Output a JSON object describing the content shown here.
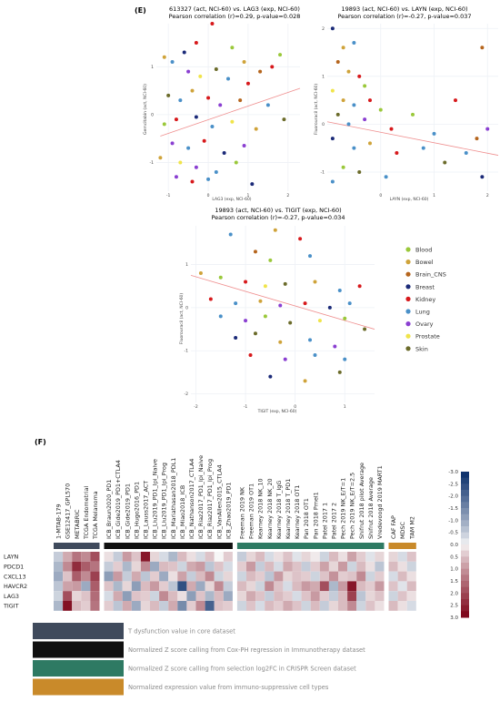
{
  "panel_e_label": "(E)",
  "panel_f_label": "(F)",
  "colors": {
    "Blood": "#9ac83a",
    "Bowel": "#cfa33a",
    "Brain_CNS": "#b5651d",
    "Breast": "#1b2a78",
    "Kidney": "#d7191c",
    "Lung": "#4a90c8",
    "Ovary": "#8a3fd1",
    "Prostate": "#f0e44a",
    "Skin": "#6b6b2a",
    "trend": "#ef8f8f"
  },
  "legend": [
    "Blood",
    "Bowel",
    "Brain_CNS",
    "Breast",
    "Kidney",
    "Lung",
    "Ovary",
    "Prostate",
    "Skin"
  ],
  "chart_data": [
    {
      "type": "scatter",
      "title": "613327 (act, NCI-60) vs. LAG3 (exp, NCI-60)",
      "subtitle": "Pearson correlation (r)=0.29, p-value=0.028",
      "xlabel": "LAG3 (exp, NCI-60)",
      "ylabel": "Gemcitabin (act, NCI-60)",
      "xticks": [
        "-1",
        "0",
        "1",
        "2"
      ],
      "yticks": [
        "1",
        "0",
        "-1"
      ],
      "xlim": [
        -1.3,
        2.3
      ],
      "ylim": [
        -1.6,
        1.9
      ],
      "trend": [
        [
          -1.2,
          -0.45
        ],
        [
          2.3,
          0.55
        ]
      ],
      "points": [
        [
          -1.1,
          1.2,
          "Bowel"
        ],
        [
          -0.9,
          1.1,
          "Lung"
        ],
        [
          -0.6,
          1.3,
          "Breast"
        ],
        [
          -0.3,
          1.5,
          "Kidney"
        ],
        [
          0.1,
          1.9,
          "Kidney"
        ],
        [
          0.6,
          1.4,
          "Blood"
        ],
        [
          0.9,
          1.1,
          "Bowel"
        ],
        [
          1.3,
          0.9,
          "Brain_CNS"
        ],
        [
          1.6,
          1.0,
          "Kidney"
        ],
        [
          1.8,
          1.25,
          "Blood"
        ],
        [
          -0.5,
          0.9,
          "Ovary"
        ],
        [
          -0.2,
          0.8,
          "Prostate"
        ],
        [
          0.2,
          0.95,
          "Skin"
        ],
        [
          0.5,
          0.75,
          "Lung"
        ],
        [
          1.0,
          0.65,
          "Kidney"
        ],
        [
          -1.0,
          0.4,
          "Skin"
        ],
        [
          -0.7,
          0.3,
          "Lung"
        ],
        [
          -0.4,
          0.5,
          "Bowel"
        ],
        [
          0.0,
          0.35,
          "Kidney"
        ],
        [
          0.3,
          0.2,
          "Ovary"
        ],
        [
          0.8,
          0.3,
          "Brain_CNS"
        ],
        [
          1.5,
          0.2,
          "Lung"
        ],
        [
          -1.1,
          -0.2,
          "Blood"
        ],
        [
          -0.8,
          -0.1,
          "Kidney"
        ],
        [
          -0.3,
          -0.05,
          "Breast"
        ],
        [
          0.1,
          -0.25,
          "Lung"
        ],
        [
          0.6,
          -0.15,
          "Prostate"
        ],
        [
          1.2,
          -0.3,
          "Bowel"
        ],
        [
          1.9,
          -0.1,
          "Skin"
        ],
        [
          -0.9,
          -0.6,
          "Ovary"
        ],
        [
          -0.5,
          -0.7,
          "Lung"
        ],
        [
          -0.1,
          -0.55,
          "Kidney"
        ],
        [
          0.4,
          -0.8,
          "Breast"
        ],
        [
          0.9,
          -0.65,
          "Ovary"
        ],
        [
          -1.2,
          -0.9,
          "Bowel"
        ],
        [
          -0.7,
          -1.0,
          "Prostate"
        ],
        [
          -0.3,
          -1.1,
          "Ovary"
        ],
        [
          0.2,
          -1.2,
          "Lung"
        ],
        [
          0.7,
          -1.0,
          "Blood"
        ],
        [
          -0.8,
          -1.3,
          "Ovary"
        ],
        [
          -0.4,
          -1.4,
          "Kidney"
        ],
        [
          0.0,
          -1.35,
          "Lung"
        ],
        [
          1.1,
          -1.45,
          "Breast"
        ]
      ]
    },
    {
      "type": "scatter",
      "title": "19893 (act, NCI-60) vs. LAYN (exp, NCI-60)",
      "subtitle": "Pearson correlation (r)=-0.27, p-value=0.037",
      "xlabel": "LAYN (exp, NCI-60)",
      "ylabel": "Fluorouracil (act, NCI-60)",
      "xticks": [
        "0",
        "1",
        "2"
      ],
      "yticks": [
        "2",
        "1",
        "0",
        "-1"
      ],
      "xlim": [
        -1.0,
        2.2
      ],
      "ylim": [
        -1.4,
        2.1
      ],
      "trend": [
        [
          -1.0,
          0.05
        ],
        [
          2.2,
          -0.65
        ]
      ],
      "points": [
        [
          -0.9,
          2.0,
          "Breast"
        ],
        [
          -0.7,
          1.6,
          "Bowel"
        ],
        [
          -0.5,
          1.7,
          "Lung"
        ],
        [
          -0.8,
          1.3,
          "Brain_CNS"
        ],
        [
          -0.6,
          1.1,
          "Bowel"
        ],
        [
          -0.4,
          1.0,
          "Kidney"
        ],
        [
          -0.3,
          0.8,
          "Blood"
        ],
        [
          -0.9,
          0.7,
          "Prostate"
        ],
        [
          -0.7,
          0.5,
          "Bowel"
        ],
        [
          -0.5,
          0.4,
          "Lung"
        ],
        [
          -0.2,
          0.5,
          "Kidney"
        ],
        [
          0.0,
          0.3,
          "Blood"
        ],
        [
          -0.8,
          0.2,
          "Skin"
        ],
        [
          -0.6,
          0.0,
          "Lung"
        ],
        [
          -0.3,
          0.1,
          "Ovary"
        ],
        [
          0.2,
          -0.1,
          "Kidney"
        ],
        [
          0.6,
          0.2,
          "Blood"
        ],
        [
          1.0,
          -0.2,
          "Lung"
        ],
        [
          1.4,
          0.5,
          "Kidney"
        ],
        [
          1.8,
          -0.3,
          "Brain_CNS"
        ],
        [
          2.0,
          -0.1,
          "Ovary"
        ],
        [
          1.9,
          1.6,
          "Brain_CNS"
        ],
        [
          -0.9,
          -0.3,
          "Breast"
        ],
        [
          -0.5,
          -0.5,
          "Lung"
        ],
        [
          -0.2,
          -0.4,
          "Bowel"
        ],
        [
          0.3,
          -0.6,
          "Kidney"
        ],
        [
          0.8,
          -0.5,
          "Lung"
        ],
        [
          1.2,
          -0.8,
          "Skin"
        ],
        [
          1.6,
          -0.6,
          "Lung"
        ],
        [
          -0.7,
          -0.9,
          "Blood"
        ],
        [
          -0.4,
          -1.0,
          "Skin"
        ],
        [
          0.1,
          -1.1,
          "Lung"
        ],
        [
          1.9,
          -1.1,
          "Breast"
        ],
        [
          -0.9,
          -1.2,
          "Lung"
        ]
      ]
    },
    {
      "type": "scatter",
      "title": "19893 (act, NCI-60) vs. TIGIT (exp, NCI-60)",
      "subtitle": "Pearson correlation (r)=-0.27, p-value=0.034",
      "xlabel": "TIGIT (exp, NCI-60)",
      "ylabel": "Fluorouracil (act, NCI-60)",
      "xticks": [
        "-2",
        "-1",
        "0",
        "1"
      ],
      "yticks": [
        "1",
        "0",
        "-1",
        "-2"
      ],
      "xlim": [
        -2.1,
        1.6
      ],
      "ylim": [
        -2.2,
        1.9
      ],
      "trend": [
        [
          -2.1,
          0.75
        ],
        [
          1.6,
          -0.5
        ]
      ],
      "points": [
        [
          -1.3,
          1.7,
          "Lung"
        ],
        [
          -0.4,
          1.8,
          "Bowel"
        ],
        [
          0.1,
          1.6,
          "Kidney"
        ],
        [
          -0.8,
          1.3,
          "Brain_CNS"
        ],
        [
          -0.5,
          1.1,
          "Blood"
        ],
        [
          0.3,
          1.2,
          "Lung"
        ],
        [
          -1.9,
          0.8,
          "Bowel"
        ],
        [
          -1.5,
          0.7,
          "Blood"
        ],
        [
          -1.0,
          0.6,
          "Kidney"
        ],
        [
          -0.6,
          0.5,
          "Prostate"
        ],
        [
          -0.2,
          0.55,
          "Skin"
        ],
        [
          0.4,
          0.6,
          "Bowel"
        ],
        [
          0.9,
          0.4,
          "Lung"
        ],
        [
          1.3,
          0.5,
          "Kidney"
        ],
        [
          -1.7,
          0.2,
          "Kidney"
        ],
        [
          -1.2,
          0.1,
          "Lung"
        ],
        [
          -0.7,
          0.15,
          "Bowel"
        ],
        [
          -0.3,
          0.05,
          "Ovary"
        ],
        [
          0.2,
          0.1,
          "Kidney"
        ],
        [
          0.7,
          0.0,
          "Breast"
        ],
        [
          1.1,
          0.1,
          "Lung"
        ],
        [
          -1.5,
          -0.2,
          "Lung"
        ],
        [
          -1.0,
          -0.3,
          "Ovary"
        ],
        [
          -0.6,
          -0.2,
          "Blood"
        ],
        [
          -0.1,
          -0.35,
          "Skin"
        ],
        [
          0.5,
          -0.3,
          "Prostate"
        ],
        [
          1.0,
          -0.25,
          "Blood"
        ],
        [
          1.4,
          -0.5,
          "Skin"
        ],
        [
          -1.2,
          -0.7,
          "Breast"
        ],
        [
          -0.8,
          -0.6,
          "Skin"
        ],
        [
          -0.3,
          -0.8,
          "Bowel"
        ],
        [
          0.3,
          -0.75,
          "Lung"
        ],
        [
          0.8,
          -0.9,
          "Ovary"
        ],
        [
          -0.9,
          -1.1,
          "Kidney"
        ],
        [
          -0.2,
          -1.2,
          "Ovary"
        ],
        [
          0.4,
          -1.1,
          "Lung"
        ],
        [
          1.0,
          -1.2,
          "Lung"
        ],
        [
          -0.5,
          -1.6,
          "Breast"
        ],
        [
          0.2,
          -1.7,
          "Bowel"
        ],
        [
          0.9,
          -1.5,
          "Skin"
        ]
      ]
    },
    {
      "type": "heatmap",
      "rows": [
        "LAYN",
        "PDCD1",
        "CXCL13",
        "HAVCR2",
        "LAG3",
        "TIGIT"
      ],
      "groups": [
        {
          "key": "core",
          "color": "#3f4a5c",
          "columns": [
            "1-MTAB-179",
            "GSE12417_GPL570",
            "METABRIC",
            "TCGA Endometrial",
            "TCGA Melanoma"
          ]
        },
        {
          "key": "immuno",
          "color": "#101010",
          "columns": [
            "ICB_Braun2020_PD1",
            "ICB_Gide2019_PD1+CTLA4",
            "ICB_Gide2019_PD1",
            "ICB_Hugo2016_PD1",
            "ICB_Lauss2017_ACT",
            "ICB_Liu2019_PD1_Ipi_Naive",
            "ICB_Liu2019_PD1_Ipi_Prog",
            "ICB_Mariathasan2018_PDL1",
            "ICB_Miao2018_ICB",
            "ICB_Nathanson2017_CTLA4",
            "ICB_Riaz2017_PD1_Ipi_Naive",
            "ICB_Riaz2017_PD1_Ipi_Prog",
            "ICB_VanAllen2015_CTLA4",
            "ICB_Zhao2019_PD1"
          ]
        },
        {
          "key": "crispr",
          "color": "#2e7a63",
          "columns": [
            "Freeman 2019 NK",
            "Freeman 2019 OT1",
            "Kearney 2018 NK_10",
            "Kearney 2018 NK_20",
            "Kearney 2018 T_IgG",
            "Kearney 2018 T_PD1",
            "Kearney 2018 OT1",
            "Pan 2018 OT1",
            "Pan 2018 Pmel1",
            "Patel 2017 1",
            "Patel 2017 2",
            "Pech 2019 NK_E/T=1",
            "Pech 2019 NK_E/T=2.5",
            "Shifrut 2018 pilot Average",
            "Shifrut 2018 Average",
            "Vredevoogd 2019 MART1"
          ]
        },
        {
          "key": "expr",
          "color": "#c98a2a",
          "columns": [
            "CAF FAP",
            "MDSC",
            "TAM M2"
          ]
        }
      ],
      "scale_ticks": [
        "-3.0",
        "-2.5",
        "-2.0",
        "-1.5",
        "-1.0",
        "-0.5",
        "0.0",
        "0.5",
        "1.0",
        "1.5",
        "2.0",
        "2.5",
        "3.0"
      ],
      "values": [
        [
          -0.5,
          0.8,
          1.5,
          1.2,
          2.0,
          0.2,
          -0.5,
          1.0,
          0.5,
          2.8,
          0.3,
          -0.3,
          -0.8,
          0.6,
          0.2,
          -0.3,
          0.5,
          0.0,
          0.4,
          -0.5,
          0.3,
          0.6,
          -0.3,
          0.2,
          0.5,
          -0.2,
          0.3,
          0.1,
          -0.4,
          0.6,
          0.2,
          0.9,
          0.4,
          -0.2,
          0.3,
          0.3,
          -0.3,
          0.5
        ],
        [
          -0.8,
          1.2,
          2.5,
          1.8,
          1.5,
          -0.5,
          0.4,
          -0.8,
          0.3,
          1.2,
          -1.0,
          0.6,
          0.5,
          -0.4,
          0.8,
          1.0,
          -0.6,
          0.5,
          -0.3,
          0.4,
          1.0,
          -0.5,
          0.6,
          -0.3,
          0.8,
          0.5,
          -0.5,
          0.4,
          0.9,
          0.3,
          1.0,
          -0.4,
          0.6,
          0.2,
          -0.6,
          0.6,
          0.2,
          -0.4
        ],
        [
          -1.0,
          0.5,
          1.8,
          1.2,
          2.2,
          -1.2,
          1.0,
          -0.5,
          0.8,
          -0.6,
          0.4,
          -1.0,
          0.2,
          0.9,
          -0.5,
          0.6,
          1.2,
          -0.4,
          0.3,
          -0.4,
          0.6,
          0.4,
          -0.6,
          1.0,
          0.3,
          0.5,
          0.4,
          -0.4,
          0.5,
          1.1,
          0.4,
          0.5,
          1.2,
          -0.4,
          0.4,
          -0.3,
          0.6,
          0.2
        ],
        [
          -0.6,
          0.9,
          1.0,
          -1.0,
          1.8,
          0.5,
          -0.8,
          0.3,
          -1.2,
          0.6,
          1.0,
          0.4,
          -0.6,
          -2.5,
          0.8,
          -1.0,
          0.3,
          1.2,
          -0.5,
          0.6,
          0.3,
          -0.4,
          1.2,
          0.5,
          -0.3,
          0.6,
          1.0,
          0.8,
          2.0,
          -0.8,
          1.0,
          2.8,
          0.6,
          0.4,
          1.0,
          0.5,
          -0.2,
          0.6
        ],
        [
          -0.4,
          2.0,
          0.3,
          0.5,
          1.6,
          -0.3,
          0.8,
          -1.2,
          0.5,
          0.4,
          -0.4,
          1.2,
          0.6,
          0.2,
          -1.2,
          0.5,
          -0.8,
          0.6,
          -1.0,
          0.3,
          0.8,
          0.5,
          -0.5,
          0.6,
          0.4,
          -0.3,
          0.5,
          1.0,
          0.4,
          -0.5,
          0.6,
          2.2,
          -0.6,
          0.3,
          0.5,
          -0.4,
          0.5,
          0.2
        ],
        [
          -0.8,
          2.9,
          0.6,
          0.4,
          1.5,
          0.4,
          -0.6,
          0.8,
          -1.0,
          0.3,
          0.6,
          -0.5,
          0.8,
          -1.5,
          0.4,
          1.2,
          -2.2,
          0.5,
          0.4,
          -0.4,
          0.5,
          -0.3,
          0.6,
          0.4,
          0.8,
          0.5,
          -0.4,
          0.6,
          -0.5,
          0.3,
          0.6,
          1.2,
          -0.4,
          0.5,
          0.2,
          0.6,
          0.2,
          -0.3
        ]
      ]
    }
  ],
  "bottom_legend": [
    {
      "key": "core",
      "label": "T dysfunction value in core dataset"
    },
    {
      "key": "immuno",
      "label": "Normalized Z score calling from Cox-PH regression in Immunotherapy dataset"
    },
    {
      "key": "crispr",
      "label": "Normalized Z score calling from selection log2FC in CRISPR Screen dataset"
    },
    {
      "key": "expr",
      "label": "Normalized expression value from immuno-suppressive cell types"
    }
  ]
}
